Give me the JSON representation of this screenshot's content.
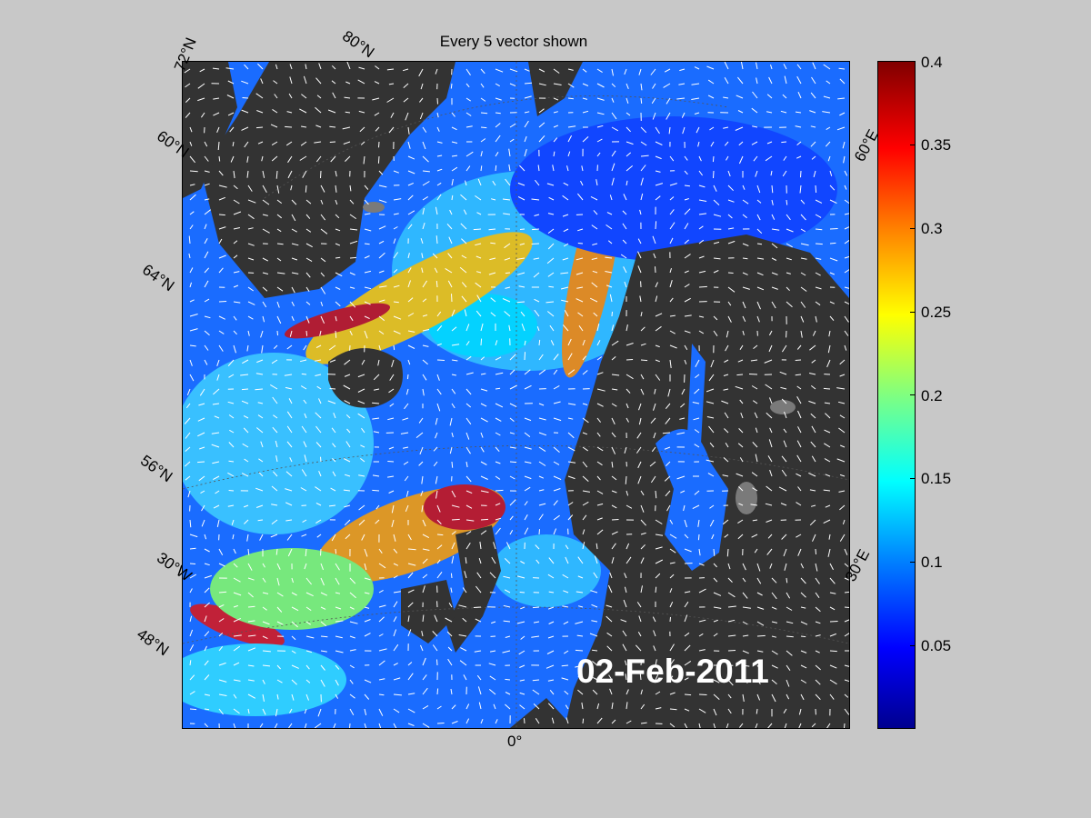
{
  "title": "Every 5 vector shown",
  "date": "02-Feb-2011",
  "lat_labels": [
    "72°N",
    "60°N",
    "64°N",
    "56°N",
    "48°N"
  ],
  "lon_labels": [
    "80°N",
    "60°E",
    "30°W",
    "30°E",
    "0°"
  ],
  "colorbar": {
    "min": 0,
    "max": 0.4,
    "ticks": [
      "0.4",
      "0.35",
      "0.3",
      "0.25",
      "0.2",
      "0.15",
      "0.1",
      "0.05"
    ],
    "colormap": "jet",
    "colors": [
      "#00008f",
      "#0000ff",
      "#0080ff",
      "#00ffff",
      "#80ff80",
      "#ffff00",
      "#ff8000",
      "#ff0000",
      "#800000"
    ]
  },
  "land_color": "#333333",
  "ice_color": "#7a7a7a",
  "vector_color": "#ffffff"
}
